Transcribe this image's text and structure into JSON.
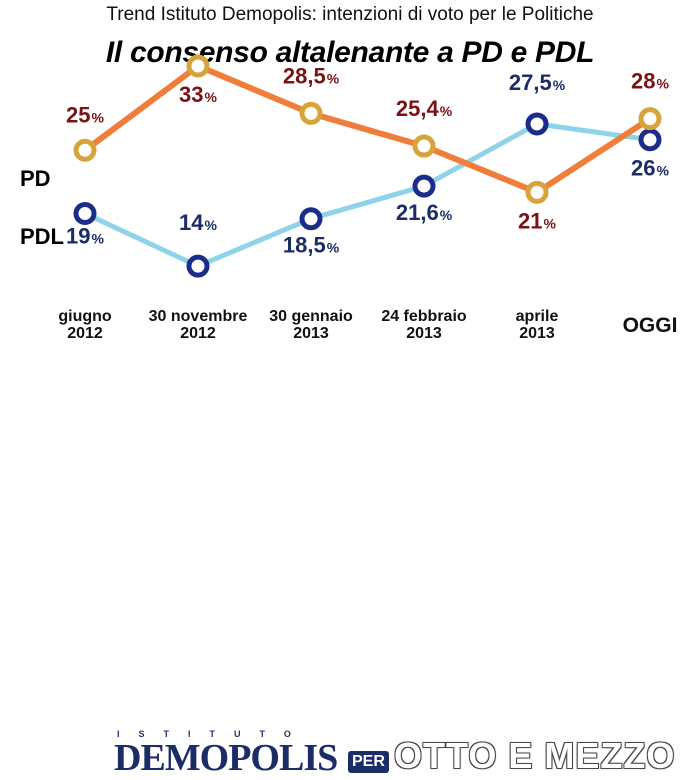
{
  "header": {
    "subtitle": "Trend Istituto Demopolis: intenzioni di voto per le Politiche",
    "title": "Il consenso altalenante a PD e PDL"
  },
  "chart_data": {
    "type": "line",
    "categories": [
      [
        "giugno",
        "2012"
      ],
      [
        "30 novembre",
        "2012"
      ],
      [
        "30 gennaio",
        "2013"
      ],
      [
        "24 febbraio",
        "2013"
      ],
      [
        "aprile",
        "2013"
      ],
      [
        "OGGI"
      ]
    ],
    "series": [
      {
        "name": "PD",
        "values": [
          25,
          33,
          28.5,
          25.4,
          21,
          28
        ],
        "labels": [
          "25",
          "33",
          "28,5",
          "25,4",
          "21",
          "28"
        ],
        "line_color": "#f07e3a",
        "marker_color": "#d6a43a",
        "label_color": "#7a1214"
      },
      {
        "name": "PDL",
        "values": [
          19,
          14,
          18.5,
          21.6,
          27.5,
          26
        ],
        "labels": [
          "19",
          "14",
          "18,5",
          "21,6",
          "27,5",
          "26"
        ],
        "line_color": "#8fd3ea",
        "marker_color": "#1b2c8a",
        "label_color": "#1b2c66"
      }
    ],
    "unit": "%"
  },
  "footer": {
    "logo_top": "ISTITUTO",
    "logo_main": "DEMOPOLIS",
    "logo_per": "PER",
    "logo_partner": "OTTO E MEZZO"
  }
}
